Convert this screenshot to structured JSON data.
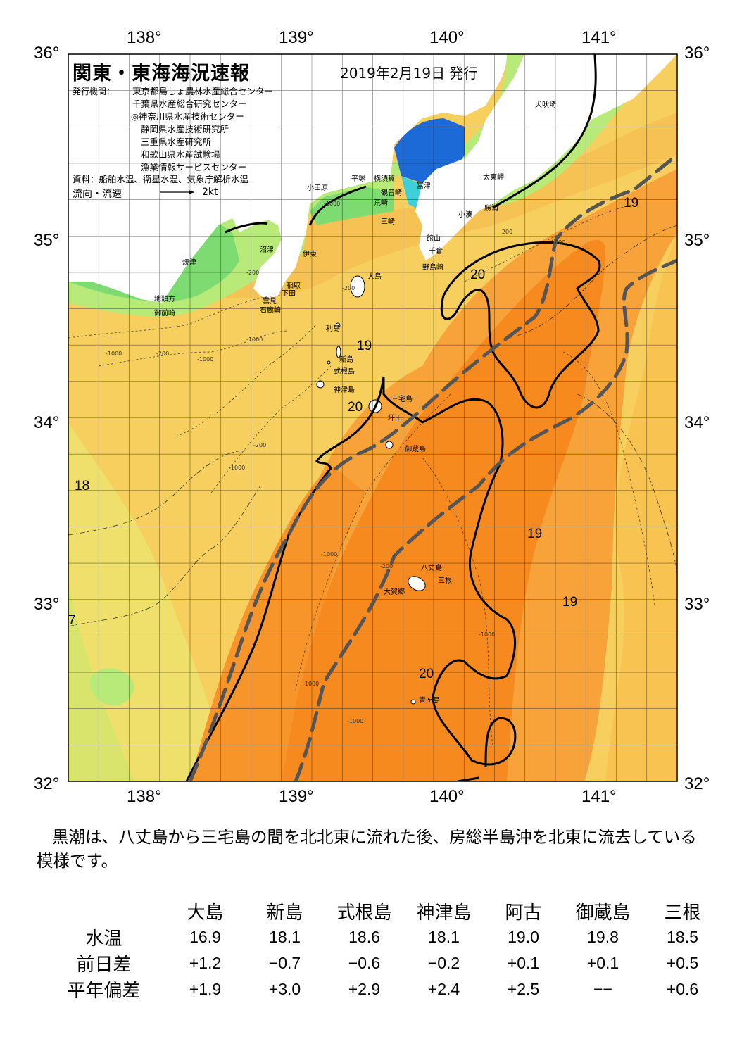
{
  "header": {
    "title": "関東・東海海況速報",
    "date": "2019年2月19日 発行",
    "publisher_label": "発行機関：",
    "publishers": [
      "東京都島しょ農林水産総合センター",
      "千葉県水産総合研究センター",
      "◎神奈川県水産技術センター",
      "静岡県水産技術研究所",
      "三重県水産研究所",
      "和歌山県水産試験場",
      "漁業情報サービスセンター"
    ],
    "source": "資料：船舶水温、衛星水温、気象庁解析水温",
    "flow_label": "流向・流速",
    "flow_unit": "2kt"
  },
  "axes": {
    "lon_top": [
      "138°",
      "139°",
      "140°",
      "141°"
    ],
    "lon_bottom": [
      "138°",
      "139°",
      "140°",
      "141°"
    ],
    "lat_left": [
      "36°",
      "35°",
      "34°",
      "33°",
      "32°"
    ],
    "lat_right": [
      "36°",
      "35°",
      "34°",
      "33°",
      "32°"
    ]
  },
  "places": [
    {
      "id": "inubosaki",
      "text": "犬吠埼"
    },
    {
      "id": "taitomisaki",
      "text": "太東岬"
    },
    {
      "id": "katsuura",
      "text": "勝浦"
    },
    {
      "id": "kominato",
      "text": "小湊"
    },
    {
      "id": "futtsu",
      "text": "富津"
    },
    {
      "id": "yokosuka",
      "text": "横須賀"
    },
    {
      "id": "kannonzaki",
      "text": "観音崎"
    },
    {
      "id": "arasaki",
      "text": "荒崎"
    },
    {
      "id": "hiratsuka",
      "text": "平塚"
    },
    {
      "id": "odawara",
      "text": "小田原"
    },
    {
      "id": "misaki",
      "text": "三崎"
    },
    {
      "id": "tateyama",
      "text": "館山"
    },
    {
      "id": "chikura",
      "text": "千倉"
    },
    {
      "id": "nojimazaki",
      "text": "野島崎"
    },
    {
      "id": "numazu",
      "text": "沼津"
    },
    {
      "id": "ito",
      "text": "伊東"
    },
    {
      "id": "inatori",
      "text": "稲取"
    },
    {
      "id": "shimoda",
      "text": "下田"
    },
    {
      "id": "kumomi",
      "text": "雲見"
    },
    {
      "id": "irozaki",
      "text": "石廊崎"
    },
    {
      "id": "yaizu",
      "text": "焼津"
    },
    {
      "id": "jitokata",
      "text": "地頭方"
    },
    {
      "id": "omaezaki",
      "text": "御前崎"
    },
    {
      "id": "oshima",
      "text": "大島"
    },
    {
      "id": "toshima",
      "text": "利島"
    },
    {
      "id": "niijima",
      "text": "新島"
    },
    {
      "id": "shikinejima",
      "text": "式根島"
    },
    {
      "id": "kozushima",
      "text": "神津島"
    },
    {
      "id": "miyakejima",
      "text": "三宅島"
    },
    {
      "id": "tsubota",
      "text": "坪田"
    },
    {
      "id": "mikurajima",
      "text": "御蔵島"
    },
    {
      "id": "hachijojima",
      "text": "八丈島"
    },
    {
      "id": "mitsune",
      "text": "三根"
    },
    {
      "id": "okago",
      "text": "大賀郷"
    },
    {
      "id": "aogashima",
      "text": "青ヶ島"
    }
  ],
  "isotherms": [
    {
      "id": "iso-19-ne",
      "text": "19"
    },
    {
      "id": "iso-20-n",
      "text": "20"
    },
    {
      "id": "iso-19-izu",
      "text": "19"
    },
    {
      "id": "iso-20-izu",
      "text": "20"
    },
    {
      "id": "iso-18-w",
      "text": "18"
    },
    {
      "id": "iso-19-e1",
      "text": "19"
    },
    {
      "id": "iso-19-e2",
      "text": "19"
    },
    {
      "id": "iso-20-s",
      "text": "20"
    },
    {
      "id": "iso-17-w",
      "text": "7"
    }
  ],
  "depth_labels": [
    "-200",
    "-1000",
    "-200",
    "-1000",
    "-200",
    "-1000",
    "-200",
    "-1000",
    "-1000",
    "-200",
    "-1000",
    "-1000",
    "-1000",
    "-1000",
    "-1000",
    "-200"
  ],
  "summary": "黒潮は、八丈島から三宅島の間を北北東に流れた後、房総半島沖を北東に流去している模様です。",
  "table": {
    "columns": [
      "大島",
      "新島",
      "式根島",
      "神津島",
      "阿古",
      "御蔵島",
      "三根"
    ],
    "rows": [
      {
        "label": "水温",
        "values": [
          "16.9",
          "18.1",
          "18.6",
          "18.1",
          "19.0",
          "19.8",
          "18.5"
        ]
      },
      {
        "label": "前日差",
        "values": [
          "+1.2",
          "−0.7",
          "−0.6",
          "−0.2",
          "+0.1",
          "+0.1",
          "+0.5"
        ]
      },
      {
        "label": "平年偏差",
        "values": [
          "+1.9",
          "+3.0",
          "+2.9",
          "+2.4",
          "+2.5",
          "−−",
          "+0.6"
        ]
      }
    ]
  },
  "colors": {
    "warmest": "#f68a1e",
    "warm": "#f8a33a",
    "mid": "#f9b94e",
    "cool": "#f6cf5e",
    "cooler": "#e6e36a",
    "green_light": "#b8ea7a",
    "green": "#7ddb72",
    "cyan": "#3fcfd8",
    "blue": "#1c6ad8",
    "kuroshio_axis": "#555555",
    "land": "#ffffff"
  }
}
